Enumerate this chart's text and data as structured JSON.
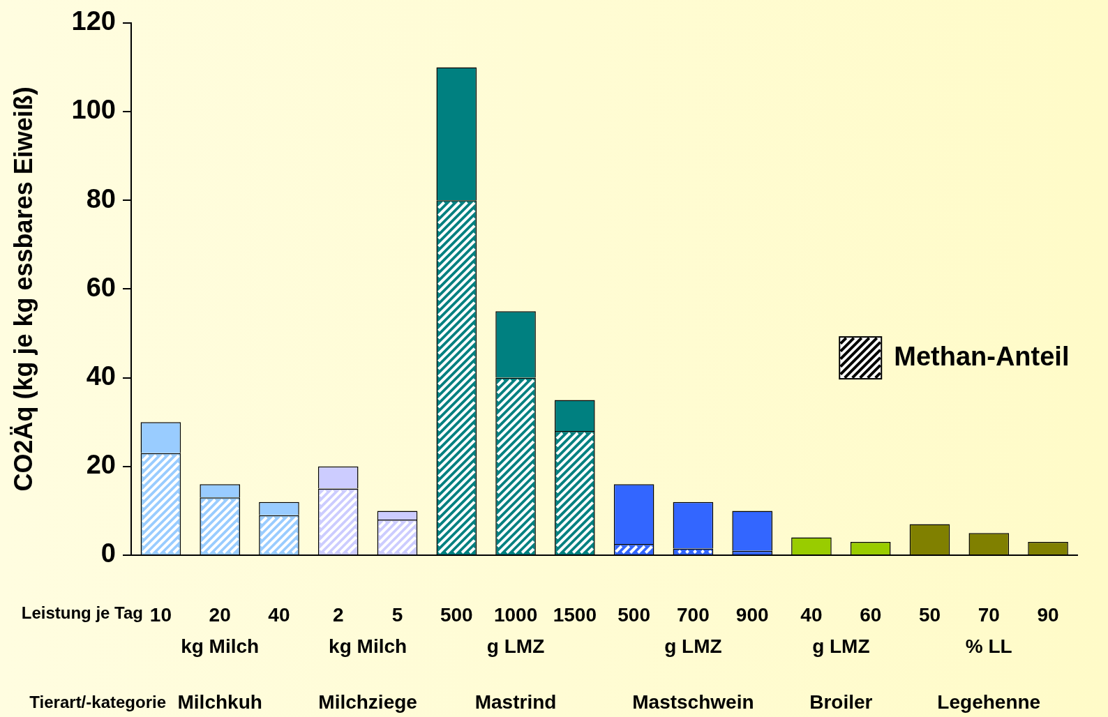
{
  "chart_data": {
    "type": "bar",
    "stacked": true,
    "ylabel": "CO2Äq (kg je kg essbares Eiweiß)",
    "categories": [
      "10",
      "20",
      "40",
      "2",
      "5",
      "500",
      "1000",
      "1500",
      "500",
      "700",
      "900",
      "40",
      "60",
      "50",
      "70",
      "90"
    ],
    "series": [
      {
        "name": "Methan-Anteil",
        "colors": [
          "#99ccff",
          "#99ccff",
          "#99ccff",
          "#ccccff",
          "#ccccff",
          "#008080",
          "#008080",
          "#008080",
          "#3366ff",
          "#3366ff",
          "#3366ff",
          "#99cc00",
          "#99cc00",
          "#808000",
          "#808000",
          "#808000"
        ],
        "values": [
          23,
          13,
          9,
          15,
          8,
          80,
          40,
          28,
          2.5,
          1.5,
          1,
          null,
          null,
          null,
          null,
          null
        ]
      },
      {
        "colors": [
          "#99ccff",
          "#99ccff",
          "#99ccff",
          "#ccccff",
          "#ccccff",
          "#008080",
          "#008080",
          "#008080",
          "#3366ff",
          "#3366ff",
          "#3366ff",
          "#99cc00",
          "#99cc00",
          "#808000",
          "#808000",
          "#808000"
        ],
        "values": [
          7,
          3,
          3,
          5,
          2,
          30,
          15,
          7,
          13.5,
          10.5,
          9,
          4,
          3,
          7,
          5,
          3
        ]
      }
    ],
    "ylim": [
      0,
      120
    ],
    "yticks": [
      0,
      20,
      40,
      60,
      80,
      100,
      120
    ],
    "grid": false,
    "legend": "right",
    "annotations": [
      "Leistung je Tag",
      "kg Milch",
      "kg Milch",
      "g LMZ",
      "g LMZ",
      "g LMZ",
      "% LL",
      "Tierart/-kategorie",
      "Milchkuh",
      "Milchziege",
      "Mastrind",
      "Mastschwein",
      "Broiler",
      "Legehenne"
    ]
  }
}
